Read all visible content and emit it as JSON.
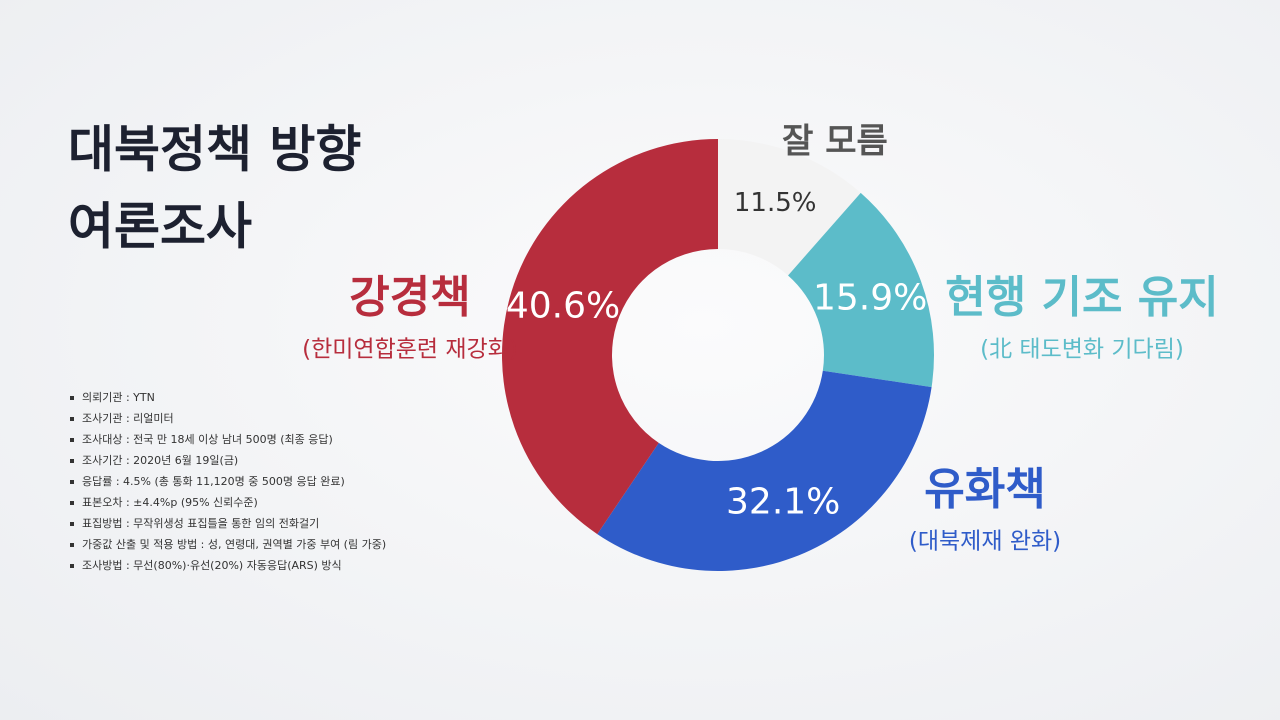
{
  "chart_data": {
    "type": "pie",
    "title": [
      "대북정책 방향",
      "여론조사"
    ],
    "categories": [
      "잘 모름",
      "현행 기조 유지",
      "유화책",
      "강경책"
    ],
    "sublabels": [
      null,
      "(北 태도변화 기다림)",
      "(대북제재 완화)",
      "(한미연합훈련 재강화)"
    ],
    "values": [
      11.5,
      15.9,
      32.1,
      40.6
    ],
    "value_labels": [
      "11.5%",
      "15.9%",
      "32.1%",
      "40.6%"
    ],
    "colors": [
      "#f3f3f3",
      "#5cbcc9",
      "#2f5cc9",
      "#b72d3d"
    ],
    "notes": [
      "의뢰기관 : YTN",
      "조사기관 : 리얼미터",
      "조사대상 : 전국 만 18세 이상 남녀 500명 (최종 응답)",
      "조사기간 : 2020년 6월 19일(금)",
      "응답률 : 4.5% (총 통화 11,120명 중 500명 응답 완료)",
      "표본오차 : ±4.4%p (95% 신뢰수준)",
      "표집방법 : 무작위생성 표집틀을 통한 임의 전화걸기",
      "가중값 산출 및 적용 방법 : 성, 연령대, 권역별 가중 부여 (림 가중)",
      "조사방법 : 무선(80%)·유선(20%) 자동응답(ARS) 방식"
    ]
  }
}
